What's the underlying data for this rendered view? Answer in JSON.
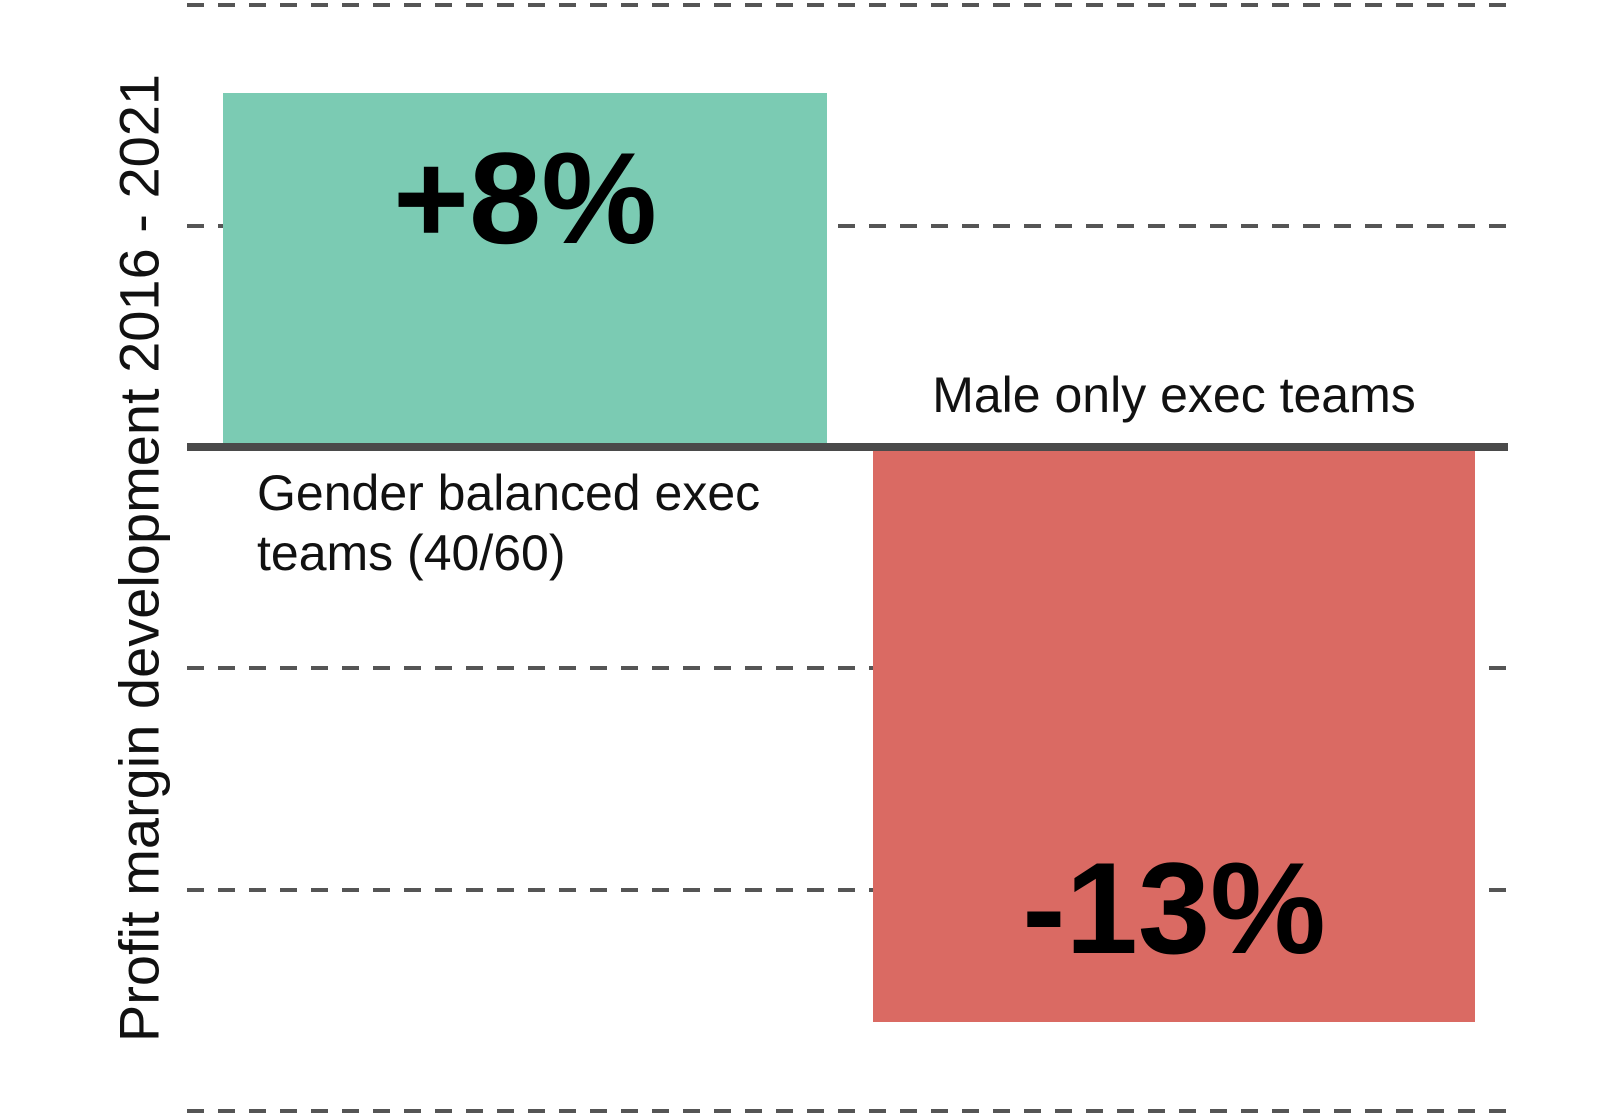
{
  "chart_data": {
    "type": "bar",
    "title": "",
    "ylabel": "Profit margin development 2016 - 2021",
    "xlabel": "",
    "unit": "%",
    "categories": [
      "Gender balanced exec teams (40/60)",
      "Male only exec teams"
    ],
    "values": [
      8,
      -13
    ],
    "value_labels": [
      "+8%",
      "-13%"
    ],
    "category_label_lines": [
      [
        "Gender balanced exec",
        "teams (40/60)"
      ],
      [
        "Male only exec teams"
      ]
    ],
    "bar_colors": [
      "#7BCBB3",
      "#DA6A63"
    ],
    "ylim": [
      -15.2,
      10.1
    ],
    "gridline_values": [
      10,
      5,
      -5,
      -10,
      -15
    ],
    "gridline_step": 5,
    "zero_line": true,
    "grid": "horizontal-dashed",
    "legend": "none",
    "colors": {
      "positive_bar": "#7BCBB3",
      "negative_bar": "#DA6A63",
      "axis_line": "#4A4A4A",
      "gridline": "#555555",
      "text": "#000000",
      "background": "#FFFFFF"
    }
  }
}
